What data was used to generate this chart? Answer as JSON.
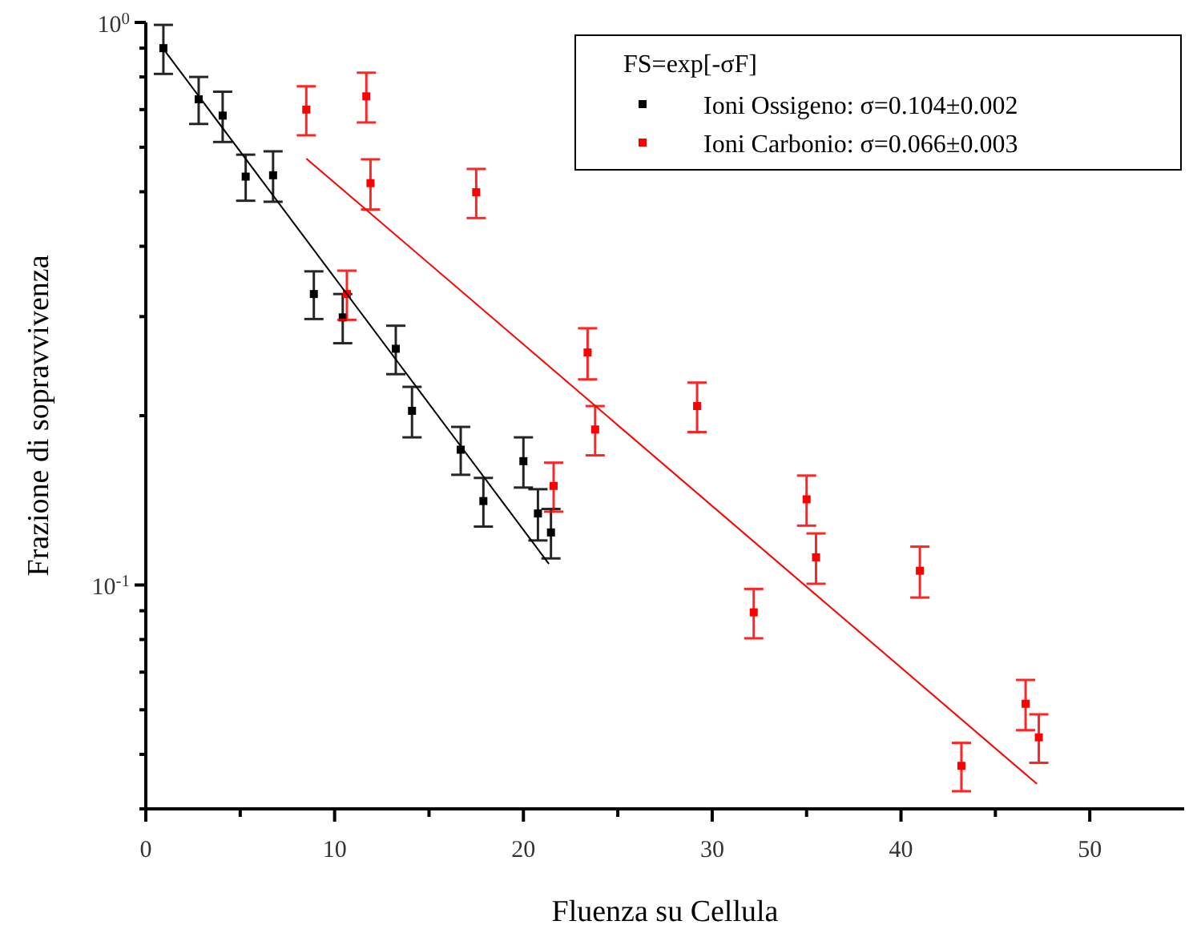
{
  "chart_data": {
    "type": "scatter",
    "xlabel": "Fluenza su Cellula",
    "ylabel": "Frazione di sopravvivenza",
    "legend_title": "FS=exp[-σF]",
    "log": "y",
    "xlim": [
      0,
      55
    ],
    "ylim": [
      0.04,
      1
    ],
    "xticks": [
      0,
      {
        "value": 5,
        "label": null
      },
      10,
      {
        "value": 15,
        "label": null
      },
      20,
      {
        "value": 25,
        "label": null
      },
      30,
      {
        "value": 35,
        "label": null
      },
      40,
      {
        "value": 45,
        "label": null
      },
      50
    ],
    "yticks": [
      {
        "value": 0.04,
        "label": null
      },
      {
        "value": 0.05,
        "label": null
      },
      {
        "value": 0.06,
        "label": null
      },
      {
        "value": 0.07,
        "label": null
      },
      {
        "value": 0.08,
        "label": null
      },
      {
        "value": 0.09,
        "label": null
      },
      {
        "value": 0.1,
        "label": "10$^{-1}$"
      },
      {
        "value": 0.2,
        "label": null
      },
      {
        "value": 0.3,
        "label": null
      },
      {
        "value": 0.4,
        "label": null
      },
      {
        "value": 0.5,
        "label": null
      },
      {
        "value": 0.6,
        "label": null
      },
      {
        "value": 0.7,
        "label": null
      },
      {
        "value": 0.8,
        "label": null
      },
      {
        "value": 0.9,
        "label": null
      },
      {
        "value": 1,
        "label": "10$^{0}$"
      }
    ],
    "grid": false,
    "legend": "top right",
    "marker": "square",
    "series": [
      {
        "name": "Ioni Ossigeno: σ=0.104±0.002",
        "color": "#000000",
        "x": [
          0.93,
          2.8,
          4.07,
          5.29,
          6.74,
          8.9,
          10.43,
          13.24,
          14.1,
          16.68,
          17.88,
          20.0,
          20.77,
          21.46
        ],
        "values": [
          0.9,
          0.73,
          0.683,
          0.532,
          0.535,
          0.329,
          0.299,
          0.263,
          0.204,
          0.174,
          0.141,
          0.166,
          0.134,
          0.124
        ],
        "errors": [
          0.09,
          0.07,
          0.07,
          0.05,
          0.055,
          0.032,
          0.03,
          0.026,
          0.021,
          0.017,
          0.014,
          0.017,
          0.014,
          0.0125
        ]
      },
      {
        "name": "Ioni Carbonio: σ=0.066±0.003",
        "color": "#ff0000",
        "x": [
          8.5,
          10.65,
          11.68,
          11.9,
          17.5,
          21.6,
          23.4,
          23.8,
          29.2,
          32.2,
          35.0,
          35.5,
          41.0,
          43.2,
          46.6,
          47.3
        ],
        "values": [
          0.7,
          0.329,
          0.739,
          0.518,
          0.499,
          0.15,
          0.259,
          0.189,
          0.208,
          0.0894,
          0.142,
          0.112,
          0.106,
          0.0477,
          0.0615,
          0.0536
        ],
        "errors": [
          0.07,
          0.033,
          0.075,
          0.053,
          0.05,
          0.015,
          0.027,
          0.019,
          0.021,
          0.009,
          0.0145,
          0.0115,
          0.011,
          0.0047,
          0.0063,
          0.0053
        ]
      },
      {
        "color": "#000000",
        "type": "line",
        "marker": "none",
        "x": [
          0.9,
          21.35
        ],
        "values": [
          0.9,
          0.109
        ]
      },
      {
        "color": "#ff0000",
        "type": "line",
        "marker": "none",
        "x": [
          8.5,
          47.2
        ],
        "values": [
          0.573,
          0.0443
        ]
      }
    ]
  }
}
